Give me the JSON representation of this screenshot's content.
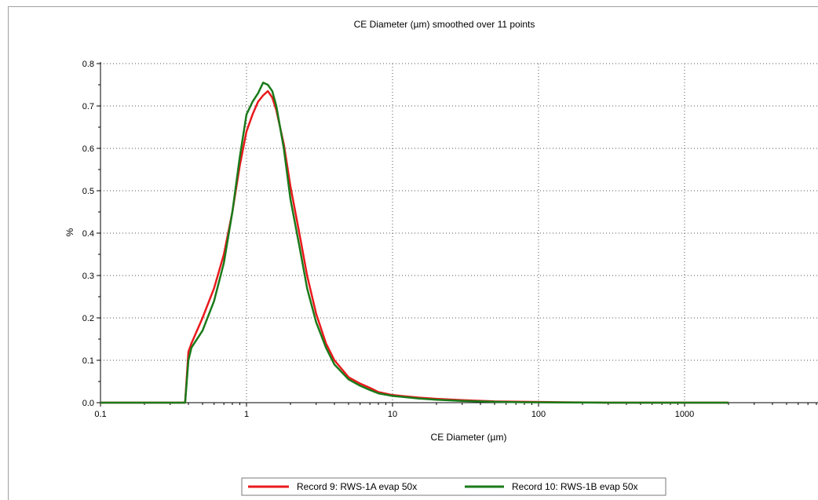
{
  "chart_data": {
    "type": "line",
    "title": "CE Diameter (µm) smoothed over 11 points",
    "xlabel": "CE Diameter (µm)",
    "ylabel": "%",
    "xscale": "log",
    "xlim": [
      0.1,
      7000
    ],
    "ylim": [
      0,
      0.8
    ],
    "x_ticks": [
      0.1,
      1,
      10,
      100,
      1000
    ],
    "x_tick_labels": [
      "0.1",
      "1",
      "10",
      "100",
      "1000"
    ],
    "y_ticks": [
      0,
      0.1,
      0.2,
      0.3,
      0.4,
      0.5,
      0.6,
      0.7,
      0.8
    ],
    "y_tick_labels": [
      "0.0",
      "0.1",
      "0.2",
      "0.3",
      "0.4",
      "0.5",
      "0.6",
      "0.7",
      "0.8"
    ],
    "grid": true,
    "legend_position": "bottom-center",
    "series": [
      {
        "name": "Record 9: RWS-1A evap 50x",
        "color": "#e8191c",
        "x": [
          0.1,
          0.38,
          0.4,
          0.42,
          0.5,
          0.6,
          0.7,
          0.8,
          0.9,
          1.0,
          1.1,
          1.2,
          1.3,
          1.4,
          1.5,
          1.6,
          1.8,
          2.0,
          2.3,
          2.6,
          3.0,
          3.5,
          4.0,
          5.0,
          6.0,
          7.0,
          8.0,
          10,
          15,
          20,
          30,
          50,
          80,
          150,
          300,
          2000
        ],
        "y": [
          0,
          0,
          0.12,
          0.14,
          0.2,
          0.27,
          0.35,
          0.45,
          0.56,
          0.64,
          0.68,
          0.71,
          0.725,
          0.735,
          0.72,
          0.69,
          0.61,
          0.51,
          0.4,
          0.3,
          0.21,
          0.14,
          0.1,
          0.06,
          0.045,
          0.035,
          0.025,
          0.018,
          0.012,
          0.009,
          0.006,
          0.003,
          0.002,
          0.001,
          0,
          0
        ]
      },
      {
        "name": "Record 10: RWS-1B evap 50x",
        "color": "#1a7a1a",
        "x": [
          0.1,
          0.38,
          0.4,
          0.42,
          0.5,
          0.6,
          0.7,
          0.8,
          0.9,
          1.0,
          1.1,
          1.2,
          1.3,
          1.4,
          1.5,
          1.6,
          1.8,
          2.0,
          2.3,
          2.6,
          3.0,
          3.5,
          4.0,
          5.0,
          6.0,
          7.0,
          8.0,
          10,
          15,
          20,
          30,
          50,
          80,
          150,
          300,
          2000
        ],
        "y": [
          0,
          0,
          0.1,
          0.13,
          0.17,
          0.24,
          0.33,
          0.45,
          0.58,
          0.68,
          0.71,
          0.73,
          0.755,
          0.75,
          0.735,
          0.7,
          0.6,
          0.48,
          0.37,
          0.27,
          0.19,
          0.13,
          0.09,
          0.055,
          0.04,
          0.03,
          0.022,
          0.016,
          0.01,
          0.007,
          0.004,
          0.002,
          0.001,
          0.0005,
          0,
          0
        ]
      }
    ]
  }
}
